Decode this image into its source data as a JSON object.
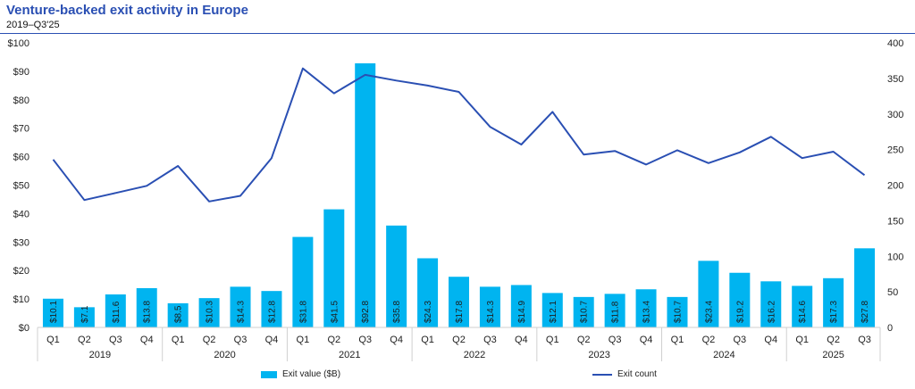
{
  "header": {
    "title": "Venture-backed exit activity in Europe",
    "subtitle": "2019–Q3'25"
  },
  "legend": {
    "bar_label": "Exit value ($B)",
    "line_label": "Exit count"
  },
  "colors": {
    "bar": "#00b4f0",
    "line": "#2a4fb3",
    "title": "#2a4fb3"
  },
  "chart_data": {
    "type": "bar",
    "categories": [
      "Q1",
      "Q2",
      "Q3",
      "Q4",
      "Q1",
      "Q2",
      "Q3",
      "Q4",
      "Q1",
      "Q2",
      "Q3",
      "Q4",
      "Q1",
      "Q2",
      "Q3",
      "Q4",
      "Q1",
      "Q2",
      "Q3",
      "Q4",
      "Q1",
      "Q2",
      "Q3",
      "Q4",
      "Q1",
      "Q2",
      "Q3"
    ],
    "years": [
      {
        "label": "2019",
        "start": 0,
        "end": 3
      },
      {
        "label": "2020",
        "start": 4,
        "end": 7
      },
      {
        "label": "2021",
        "start": 8,
        "end": 11
      },
      {
        "label": "2022",
        "start": 12,
        "end": 15
      },
      {
        "label": "2023",
        "start": 16,
        "end": 19
      },
      {
        "label": "2024",
        "start": 20,
        "end": 23
      },
      {
        "label": "2025",
        "start": 24,
        "end": 26
      }
    ],
    "series": [
      {
        "name": "Exit value ($B)",
        "type": "bar",
        "axis": "left",
        "values": [
          10.1,
          7.1,
          11.6,
          13.8,
          8.5,
          10.3,
          14.3,
          12.8,
          31.8,
          41.5,
          92.8,
          35.8,
          24.3,
          17.8,
          14.3,
          14.9,
          12.1,
          10.7,
          11.8,
          13.4,
          10.7,
          23.4,
          19.2,
          16.2,
          14.6,
          17.3,
          27.8
        ],
        "labels": [
          "$10.1",
          "$7.1",
          "$11.6",
          "$13.8",
          "$8.5",
          "$10.3",
          "$14.3",
          "$12.8",
          "$31.8",
          "$41.5",
          "$92.8",
          "$35.8",
          "$24.3",
          "$17.8",
          "$14.3",
          "$14.9",
          "$12.1",
          "$10.7",
          "$11.8",
          "$13.4",
          "$10.7",
          "$23.4",
          "$19.2",
          "$16.2",
          "$14.6",
          "$17.3",
          "$27.8"
        ]
      },
      {
        "name": "Exit count",
        "type": "line",
        "axis": "right",
        "values": [
          236,
          179,
          189,
          199,
          227,
          177,
          185,
          238,
          364,
          329,
          355,
          347,
          340,
          331,
          282,
          257,
          303,
          243,
          248,
          229,
          249,
          231,
          246,
          268,
          238,
          247,
          214
        ]
      }
    ],
    "y_left": {
      "ylim": [
        0,
        100
      ],
      "ticks": [
        "$0",
        "$10",
        "$20",
        "$30",
        "$40",
        "$50",
        "$60",
        "$70",
        "$80",
        "$90",
        "$100"
      ]
    },
    "y_right": {
      "ylim": [
        0,
        400
      ],
      "ticks": [
        "0",
        "50",
        "100",
        "150",
        "200",
        "250",
        "300",
        "350",
        "400"
      ]
    },
    "legend_position": "bottom",
    "grid": false
  }
}
